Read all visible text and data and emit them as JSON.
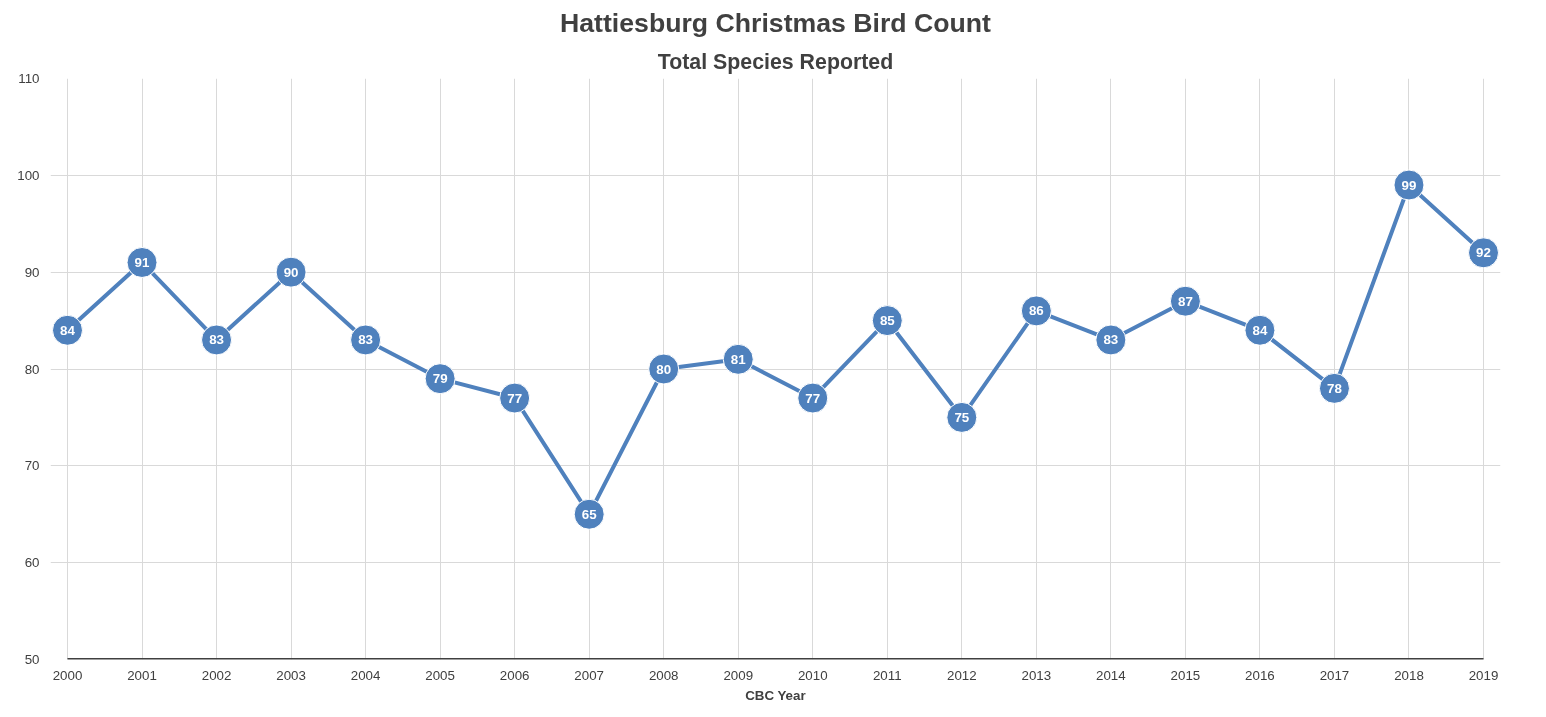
{
  "chart_data": {
    "type": "line",
    "title": "Hattiesburg Christmas Bird Count",
    "subtitle": "Total Species Reported",
    "xlabel": "CBC Year",
    "x": [
      2000,
      2001,
      2002,
      2003,
      2004,
      2005,
      2006,
      2007,
      2008,
      2009,
      2010,
      2011,
      2012,
      2013,
      2014,
      2015,
      2016,
      2017,
      2018,
      2019
    ],
    "series": [
      {
        "color": "#4f81bd",
        "values": [
          84,
          91,
          83,
          90,
          83,
          79,
          77,
          65,
          80,
          81,
          77,
          85,
          75,
          86,
          83,
          87,
          84,
          78,
          99,
          92
        ]
      }
    ],
    "xlim": [
      2000,
      2019
    ],
    "xticks": [
      2000,
      2001,
      2002,
      2003,
      2004,
      2005,
      2006,
      2007,
      2008,
      2009,
      2010,
      2011,
      2012,
      2013,
      2014,
      2015,
      2016,
      2017,
      2018,
      2019
    ],
    "ylim": [
      50,
      110
    ],
    "yticks": [
      50,
      60,
      70,
      80,
      90,
      100,
      110
    ],
    "grid": true,
    "marker": "circle",
    "line_style": "solid",
    "data_labels": true
  }
}
